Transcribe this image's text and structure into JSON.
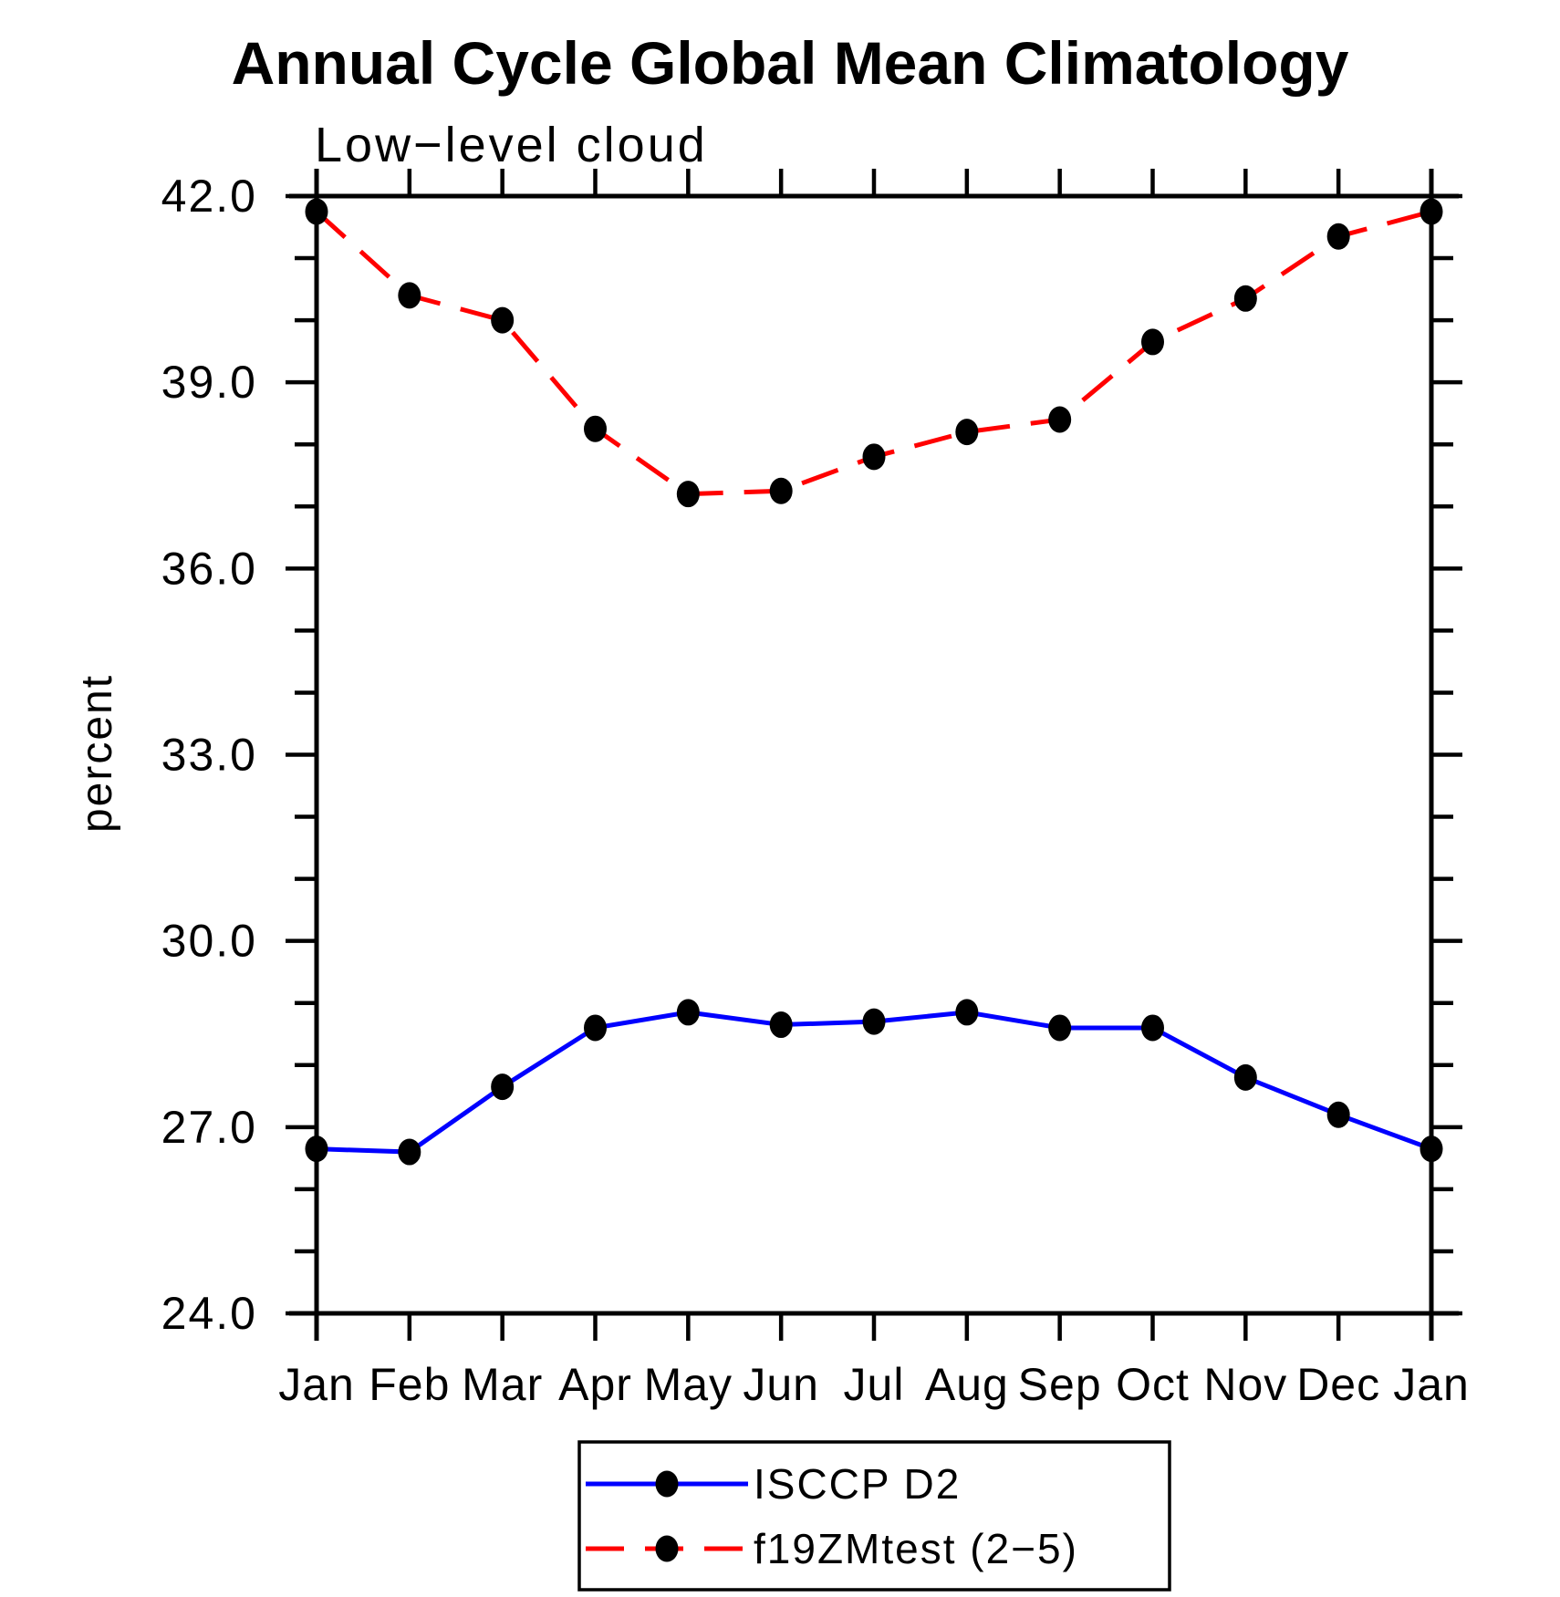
{
  "title": "Annual Cycle Global Mean Climatology",
  "subtitle": "Low−level cloud",
  "axes": {
    "ylabel": "percent",
    "y_tick_labels": [
      "24.0",
      "27.0",
      "30.0",
      "33.0",
      "36.0",
      "39.0",
      "42.0"
    ]
  },
  "legend": {
    "items": [
      {
        "label": "ISCCP D2"
      },
      {
        "label": "f19ZMtest (2−5)"
      }
    ]
  },
  "chart_data": {
    "type": "line",
    "title": "Annual Cycle Global Mean Climatology",
    "subtitle": "Low−level cloud",
    "xlabel": "",
    "ylabel": "percent",
    "categories": [
      "Jan",
      "Feb",
      "Mar",
      "Apr",
      "May",
      "Jun",
      "Jul",
      "Aug",
      "Sep",
      "Oct",
      "Nov",
      "Dec",
      "Jan"
    ],
    "series": [
      {
        "name": "ISCCP D2",
        "color": "#0000ff",
        "line_style": "solid",
        "marker": "filled-circle",
        "marker_color": "#000000",
        "values": [
          26.65,
          26.6,
          27.65,
          28.6,
          28.85,
          28.65,
          28.7,
          28.85,
          28.6,
          28.6,
          27.8,
          27.2,
          26.65
        ]
      },
      {
        "name": "f19ZMtest (2−5)",
        "color": "#ff0000",
        "line_style": "dashed",
        "marker": "filled-circle",
        "marker_color": "#000000",
        "values": [
          41.75,
          40.4,
          40.0,
          38.25,
          37.2,
          37.25,
          37.8,
          38.2,
          38.4,
          39.65,
          40.35,
          41.35,
          41.75
        ]
      }
    ],
    "ylim": [
      24.0,
      42.0
    ],
    "y_major_step": 3.0,
    "y_minor_step": 1.0,
    "grid": false,
    "legend_position": "bottom-center"
  }
}
